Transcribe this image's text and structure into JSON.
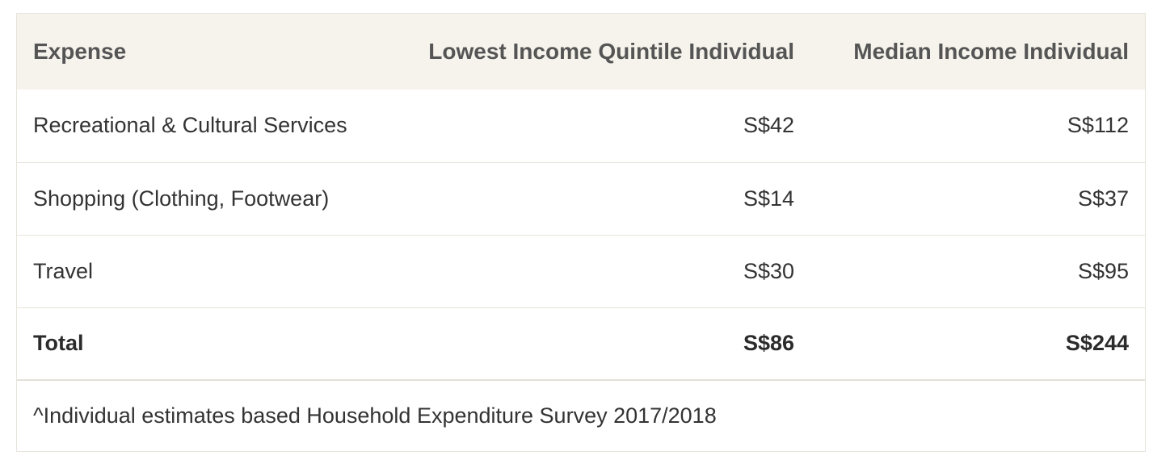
{
  "table": {
    "headers": {
      "expense": "Expense",
      "lowest": "Lowest Income Quintile Individual",
      "median": "Median Income Individual"
    },
    "rows": [
      {
        "expense": "Recreational & Cultural Services",
        "lowest": "S$42",
        "median": "S$112"
      },
      {
        "expense": "Shopping (Clothing, Footwear)",
        "lowest": "S$14",
        "median": "S$37"
      },
      {
        "expense": "Travel",
        "lowest": "S$30",
        "median": "S$95"
      }
    ],
    "total": {
      "expense": "Total",
      "lowest": "S$86",
      "median": "S$244"
    },
    "footnote": "^Individual estimates based Household Expenditure Survey 2017/2018"
  }
}
